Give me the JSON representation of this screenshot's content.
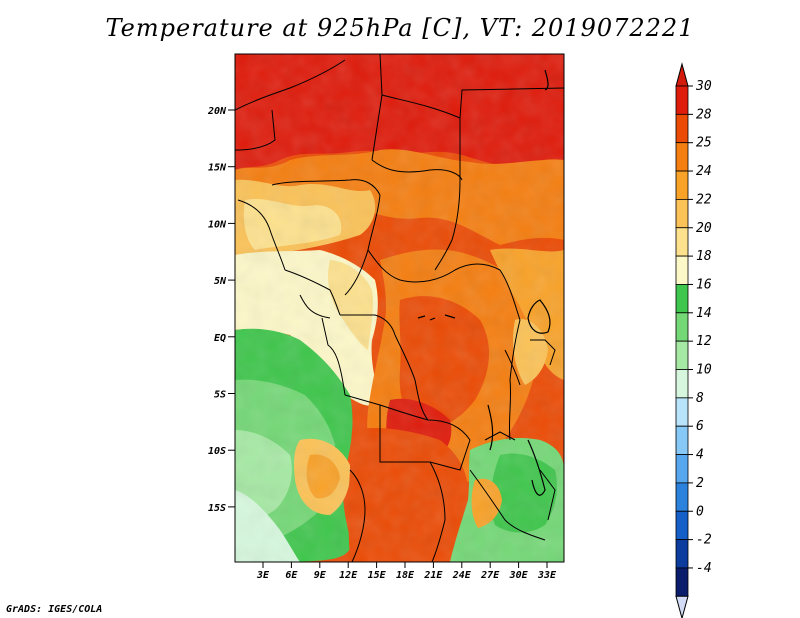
{
  "title": "Temperature at 925hPa [C], VT: 2019072221",
  "credit": "GrADS: IGES/COLA",
  "map": {
    "lat_labels": [
      "20N",
      "15N",
      "10N",
      "5N",
      "EQ",
      "5S",
      "10S",
      "15S"
    ],
    "lon_labels": [
      "3E",
      "6E",
      "9E",
      "12E",
      "15E",
      "18E",
      "21E",
      "24E",
      "27E",
      "30E",
      "33E"
    ]
  },
  "colorbar": {
    "labels": [
      "30",
      "28",
      "25",
      "24",
      "22",
      "20",
      "18",
      "16",
      "14",
      "12",
      "10",
      "8",
      "6",
      "4",
      "2",
      "0",
      "-2",
      "-4"
    ],
    "colors": [
      "#df1b0b",
      "#eb4b05",
      "#f57e10",
      "#f9a228",
      "#fbc257",
      "#fde18d",
      "#fdf8c8",
      "#3fc64c",
      "#74d876",
      "#a6e9a4",
      "#d6f7dd",
      "#b7e3fb",
      "#86c8f6",
      "#56a7ee",
      "#2b82dd",
      "#155fc8",
      "#0c3c9e",
      "#0a1d6c"
    ],
    "top_color": "#d41b0b",
    "bottom_color": "#d3dcf6"
  }
}
